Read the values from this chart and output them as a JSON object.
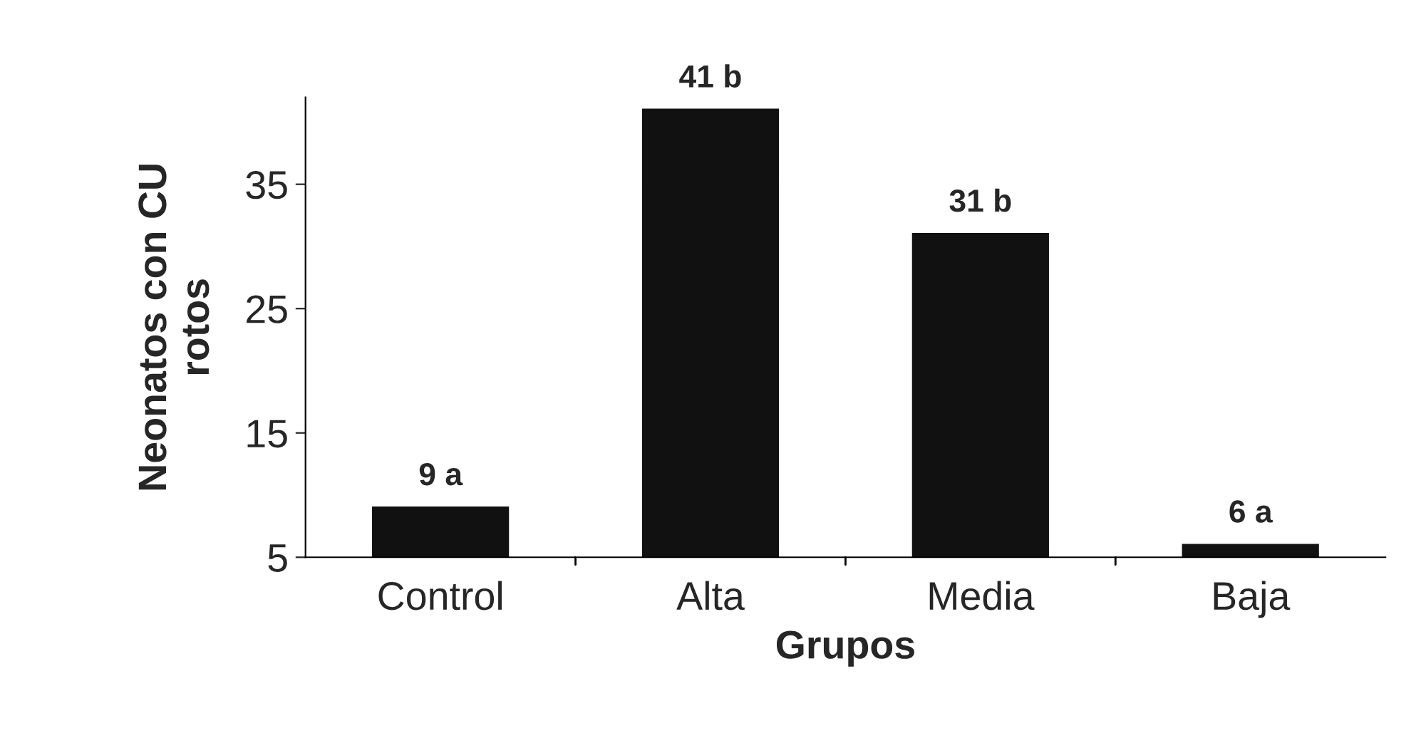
{
  "chart_data": {
    "type": "bar",
    "xlabel": "Grupos",
    "ylabel": "Neonatos con CU\nrotos",
    "categories": [
      "Control",
      "Alta",
      "Media",
      "Baja"
    ],
    "values": [
      9,
      41,
      31,
      6
    ],
    "value_labels": [
      "9 a",
      "41 b",
      "31 b",
      "6 a"
    ],
    "color": "#111111",
    "ylim": [
      5,
      42
    ],
    "yticks": [
      5,
      15,
      25,
      35
    ],
    "grid": false,
    "legend": false
  }
}
